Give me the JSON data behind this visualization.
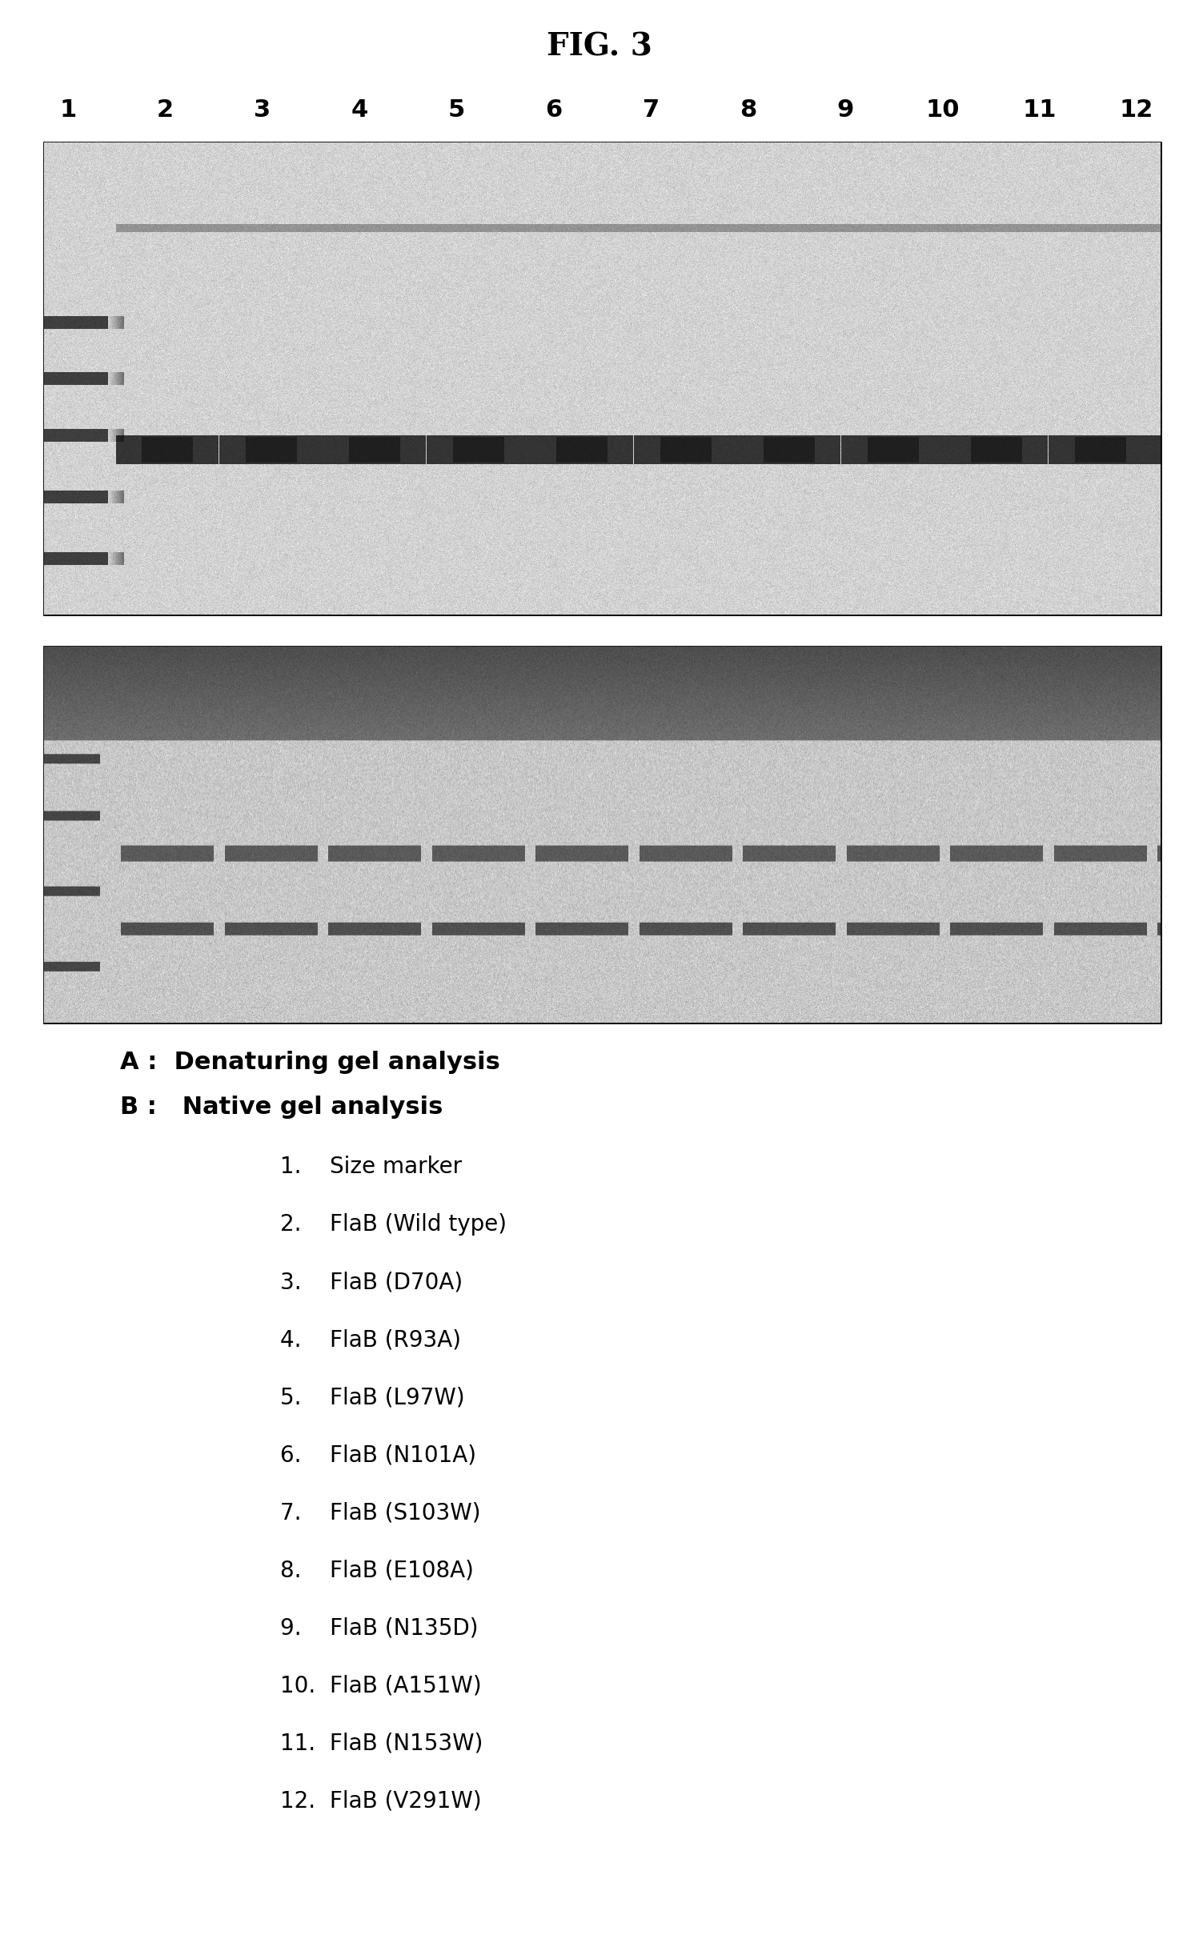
{
  "title": "FIG. 3",
  "title_fontsize": 28,
  "title_fontweight": "bold",
  "background_color": "#ffffff",
  "lane_numbers": [
    "1",
    "2",
    "3",
    "4",
    "5",
    "6",
    "7",
    "8",
    "9",
    "10",
    "11",
    "12"
  ],
  "panel_A_label": "A",
  "panel_B_label": "B",
  "label_A": "A :  Denaturing gel analysis",
  "label_B": "B :   Native gel analysis",
  "legend_items": [
    "1.    Size marker",
    "2.    FlaB (Wild type)",
    "3.    FlaB (D70A)",
    "4.    FlaB (R93A)",
    "5.    FlaB (L97W)",
    "6.    FlaB (N101A)",
    "7.    FlaB (S103W)",
    "8.    FlaB (E108A)",
    "9.    FlaB (N135D)",
    "10.  FlaB (A151W)",
    "11.  FlaB (N153W)",
    "12.  FlaB (V291W)"
  ],
  "text_fontsize": 22,
  "legend_fontsize": 20,
  "panel_label_fontsize": 28
}
